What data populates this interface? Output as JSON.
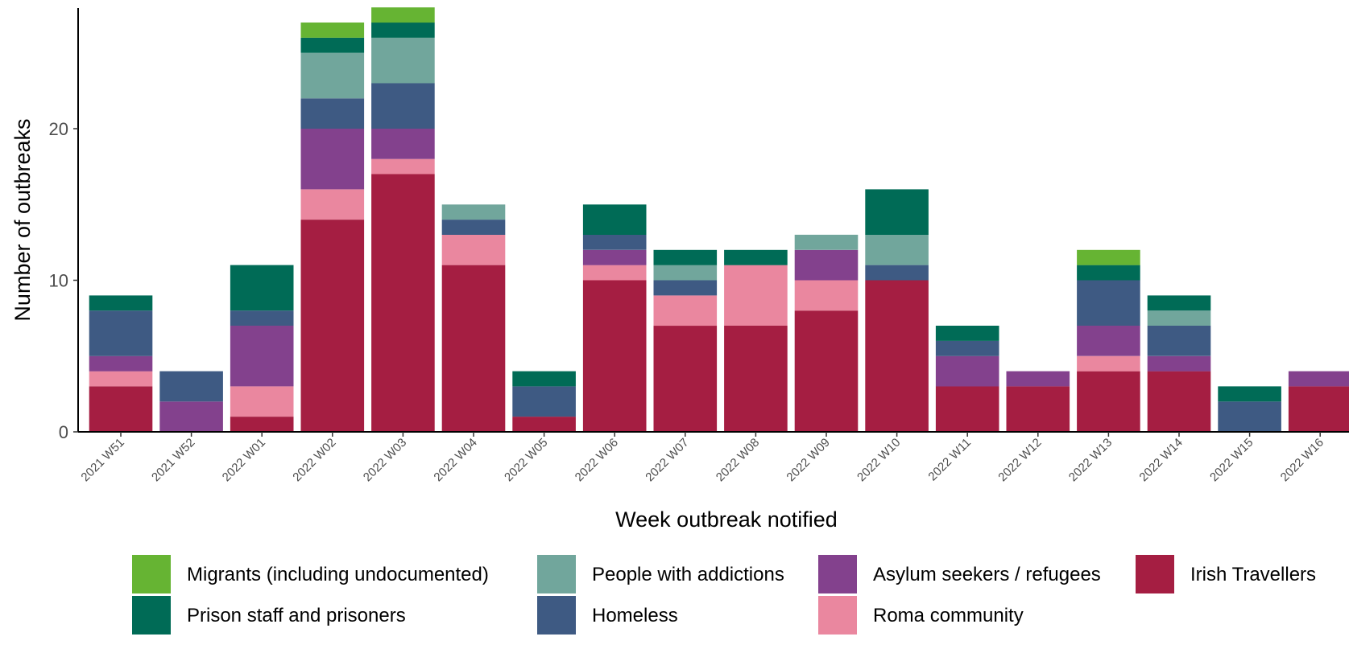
{
  "chart_data": {
    "type": "bar",
    "stacked": true,
    "title": "",
    "xlabel": "Week outbreak notified",
    "ylabel": "Number of outbreaks",
    "ylim": [
      0,
      28
    ],
    "yticks": [
      0,
      10,
      20
    ],
    "grid": false,
    "legend_position": "bottom",
    "categories": [
      "2021 W51",
      "2021 W52",
      "2022 W01",
      "2022 W02",
      "2022 W03",
      "2022 W04",
      "2022 W05",
      "2022 W06",
      "2022 W07",
      "2022 W08",
      "2022 W09",
      "2022 W10",
      "2022 W11",
      "2022 W12",
      "2022 W13",
      "2022 W14",
      "2022 W15",
      "2022 W16"
    ],
    "series": [
      {
        "name": "Irish Travellers",
        "color": "#A51E42",
        "values": [
          3,
          0,
          1,
          14,
          17,
          11,
          1,
          10,
          7,
          7,
          8,
          10,
          3,
          3,
          4,
          4,
          0,
          3
        ]
      },
      {
        "name": "Roma community",
        "color": "#EA879F",
        "values": [
          1,
          0,
          2,
          2,
          1,
          2,
          0,
          1,
          2,
          4,
          2,
          0,
          0,
          0,
          1,
          0,
          0,
          0
        ]
      },
      {
        "name": "Asylum seekers / refugees",
        "color": "#83418D",
        "values": [
          1,
          2,
          4,
          4,
          2,
          0,
          0,
          1,
          0,
          0,
          2,
          0,
          2,
          1,
          2,
          1,
          0,
          1
        ]
      },
      {
        "name": "Homeless",
        "color": "#3E5A83",
        "values": [
          3,
          2,
          1,
          2,
          3,
          1,
          2,
          1,
          1,
          0,
          0,
          1,
          1,
          0,
          3,
          2,
          2,
          0
        ]
      },
      {
        "name": "People with addictions",
        "color": "#71A69C",
        "values": [
          0,
          0,
          0,
          3,
          3,
          1,
          0,
          0,
          1,
          0,
          1,
          2,
          0,
          0,
          0,
          1,
          0,
          0
        ]
      },
      {
        "name": "Prison staff and prisoners",
        "color": "#006B56",
        "values": [
          1,
          0,
          3,
          1,
          1,
          0,
          1,
          2,
          1,
          1,
          0,
          3,
          1,
          0,
          1,
          1,
          1,
          0
        ]
      },
      {
        "name": "Migrants (including undocumented)",
        "color": "#66B433",
        "values": [
          0,
          0,
          0,
          1,
          1,
          0,
          0,
          0,
          0,
          0,
          0,
          0,
          0,
          0,
          1,
          0,
          0,
          0
        ]
      }
    ],
    "legend_order": [
      "Migrants (including undocumented)",
      "People with addictions",
      "Asylum seekers / refugees",
      "Irish Travellers",
      "Prison staff and prisoners",
      "Homeless",
      "Roma community"
    ]
  }
}
